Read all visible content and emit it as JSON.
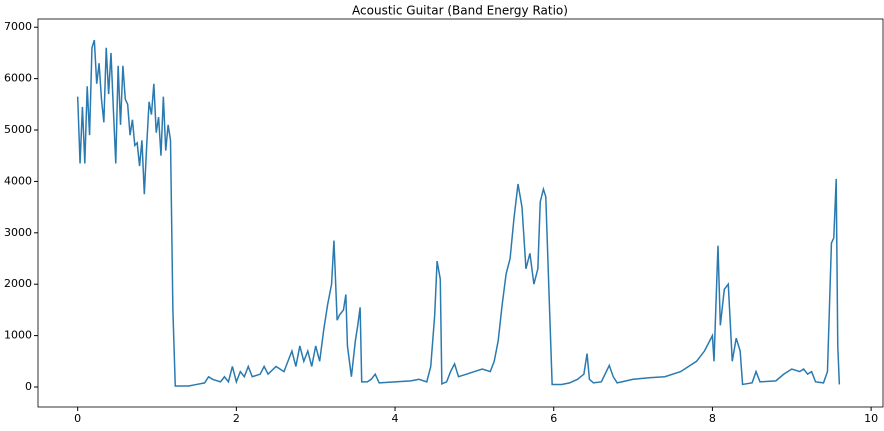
{
  "chart_data": {
    "type": "line",
    "title": "Acoustic Guitar (Band Energy Ratio)",
    "x": [
      0.0,
      0.03,
      0.06,
      0.09,
      0.12,
      0.15,
      0.18,
      0.21,
      0.24,
      0.27,
      0.3,
      0.33,
      0.36,
      0.39,
      0.42,
      0.45,
      0.48,
      0.51,
      0.54,
      0.57,
      0.6,
      0.63,
      0.66,
      0.69,
      0.72,
      0.75,
      0.78,
      0.81,
      0.84,
      0.87,
      0.9,
      0.93,
      0.96,
      0.99,
      1.02,
      1.05,
      1.08,
      1.11,
      1.14,
      1.17,
      1.2,
      1.23,
      1.4,
      1.5,
      1.6,
      1.65,
      1.7,
      1.8,
      1.85,
      1.9,
      1.95,
      2.0,
      2.05,
      2.1,
      2.15,
      2.2,
      2.3,
      2.35,
      2.4,
      2.5,
      2.6,
      2.7,
      2.75,
      2.8,
      2.85,
      2.9,
      2.95,
      3.0,
      3.05,
      3.1,
      3.15,
      3.2,
      3.23,
      3.27,
      3.3,
      3.35,
      3.38,
      3.4,
      3.45,
      3.5,
      3.53,
      3.56,
      3.58,
      3.65,
      3.7,
      3.75,
      3.8,
      4.0,
      4.2,
      4.3,
      4.4,
      4.45,
      4.5,
      4.53,
      4.57,
      4.59,
      4.65,
      4.7,
      4.75,
      4.8,
      4.9,
      5.0,
      5.1,
      5.2,
      5.25,
      5.3,
      5.35,
      5.4,
      5.45,
      5.5,
      5.55,
      5.6,
      5.65,
      5.7,
      5.75,
      5.8,
      5.83,
      5.87,
      5.9,
      5.95,
      5.98,
      6.1,
      6.2,
      6.3,
      6.38,
      6.42,
      6.45,
      6.5,
      6.6,
      6.7,
      6.75,
      6.8,
      7.0,
      7.2,
      7.4,
      7.6,
      7.8,
      7.9,
      8.0,
      8.02,
      8.07,
      8.1,
      8.15,
      8.2,
      8.25,
      8.3,
      8.35,
      8.38,
      8.5,
      8.55,
      8.6,
      8.8,
      8.9,
      9.0,
      9.1,
      9.15,
      9.2,
      9.25,
      9.3,
      9.4,
      9.45,
      9.5,
      9.53,
      9.56,
      9.58,
      9.6
    ],
    "series": [
      {
        "color": "#2a7ab0",
        "values": [
          5650,
          4350,
          5450,
          4350,
          5850,
          4900,
          6600,
          6750,
          5900,
          6300,
          5600,
          5150,
          6600,
          5700,
          6500,
          5400,
          4350,
          6250,
          5100,
          6250,
          5600,
          5500,
          4900,
          5200,
          4700,
          4750,
          4300,
          4800,
          3750,
          4700,
          5550,
          5300,
          5900,
          4950,
          5250,
          4500,
          5650,
          4600,
          5100,
          4800,
          1500,
          20,
          20,
          50,
          80,
          200,
          150,
          100,
          200,
          100,
          400,
          100,
          300,
          200,
          400,
          200,
          250,
          400,
          250,
          400,
          300,
          700,
          400,
          800,
          500,
          700,
          400,
          800,
          500,
          1100,
          1600,
          2000,
          2850,
          1300,
          1400,
          1500,
          1800,
          800,
          200,
          900,
          1200,
          1550,
          100,
          100,
          150,
          250,
          80,
          100,
          120,
          150,
          100,
          400,
          1400,
          2450,
          2100,
          60,
          100,
          300,
          450,
          200,
          250,
          300,
          350,
          300,
          500,
          900,
          1600,
          2200,
          2500,
          3300,
          3950,
          3500,
          2300,
          2600,
          2000,
          2300,
          3600,
          3850,
          3700,
          1400,
          50,
          50,
          80,
          150,
          250,
          650,
          150,
          80,
          100,
          420,
          200,
          80,
          150,
          180,
          200,
          300,
          500,
          700,
          1000,
          500,
          2750,
          1200,
          1900,
          2000,
          500,
          950,
          700,
          50,
          80,
          300,
          100,
          120,
          250,
          350,
          300,
          350,
          250,
          300,
          100,
          80,
          300,
          2800,
          2900,
          4050,
          800,
          50
        ]
      }
    ],
    "xlim": [
      -0.5,
      10.15
    ],
    "ylim": [
      -389,
      7160
    ],
    "xticks": [
      0,
      2,
      4,
      6,
      8,
      10
    ],
    "yticks": [
      0,
      1000,
      2000,
      3000,
      4000,
      5000,
      6000,
      7000
    ]
  }
}
